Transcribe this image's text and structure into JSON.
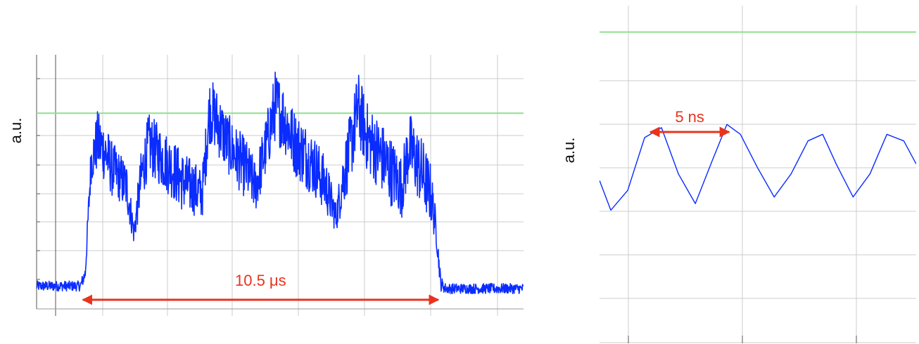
{
  "colors": {
    "signal": "#0a2cff",
    "threshold": "#8fe08f",
    "annotation": "#e8331f",
    "grid": "#cccccc"
  },
  "chart_data": [
    {
      "type": "line",
      "title": "",
      "xlabel": "",
      "ylabel": "a.u.",
      "xlim": [
        0,
        100
      ],
      "ylim": [
        0,
        100
      ],
      "grid": true,
      "legend": "none",
      "threshold": 77,
      "annotation": {
        "label": "10.5 μs",
        "x_start": 9.5,
        "x_end": 82.5,
        "arrow": "double"
      },
      "series": [
        {
          "x": [
            0,
            9.0,
            10.0,
            11.2,
            12.5,
            14.0,
            15.5,
            17.0,
            18.5,
            20.0,
            21.5,
            23.0,
            24.5,
            25.5,
            26.5,
            28.0,
            30.0,
            32.0,
            34.0,
            35.5,
            36.5,
            37.5,
            39.0,
            41.0,
            43.0,
            45.0,
            47.0,
            49.0,
            50.5,
            51.5,
            52.3,
            53.5,
            55.5,
            57.5,
            59.5,
            61.5,
            63.0,
            64.5,
            66.0,
            67.0,
            68.0,
            70.0,
            72.5,
            75.0,
            76.5,
            78.0,
            79.5,
            81.0,
            82.0,
            83.0,
            84.0,
            100
          ],
          "y": [
            9,
            9,
            14,
            58,
            66,
            62,
            55,
            52,
            48,
            30,
            52,
            65,
            62,
            60,
            58,
            55,
            50,
            48,
            45,
            78,
            76,
            72,
            66,
            60,
            55,
            48,
            63,
            80,
            76,
            72,
            68,
            64,
            60,
            55,
            48,
            36,
            52,
            64,
            79,
            73,
            67,
            62,
            55,
            48,
            64,
            58,
            52,
            45,
            32,
            10,
            8,
            8
          ],
          "band": [
            2,
            2,
            3,
            9,
            12,
            12,
            11,
            10,
            10,
            5,
            11,
            12,
            12,
            12,
            12,
            12,
            12,
            11,
            10,
            13,
            13,
            13,
            12,
            12,
            12,
            10,
            12,
            14,
            14,
            13,
            13,
            13,
            13,
            12,
            11,
            6,
            12,
            14,
            15,
            14,
            14,
            14,
            14,
            12,
            14,
            14,
            14,
            12,
            6,
            3,
            2,
            2
          ]
        }
      ]
    },
    {
      "type": "line",
      "title": "",
      "xlabel": "",
      "ylabel": "a.u.",
      "xlim": [
        0,
        28.1
      ],
      "ylim": [
        0,
        100
      ],
      "grid": true,
      "legend": "none",
      "threshold": 92,
      "annotation": {
        "label": "5 ns",
        "x_start": 4.5,
        "x_end": 11.5,
        "arrow": "double"
      },
      "series": [
        {
          "x": [
            0,
            1.0,
            2.5,
            4.0,
            5.5,
            7.0,
            8.5,
            10.0,
            11.3,
            12.5,
            14.0,
            15.5,
            17.0,
            18.5,
            19.8,
            21.0,
            22.5,
            24.0,
            25.5,
            27.0,
            28.1
          ],
          "y": [
            47,
            38,
            44,
            60,
            63,
            49,
            40,
            53,
            64,
            61,
            51,
            42,
            49,
            59,
            61,
            52,
            42,
            49,
            61,
            59,
            52
          ]
        }
      ]
    }
  ]
}
